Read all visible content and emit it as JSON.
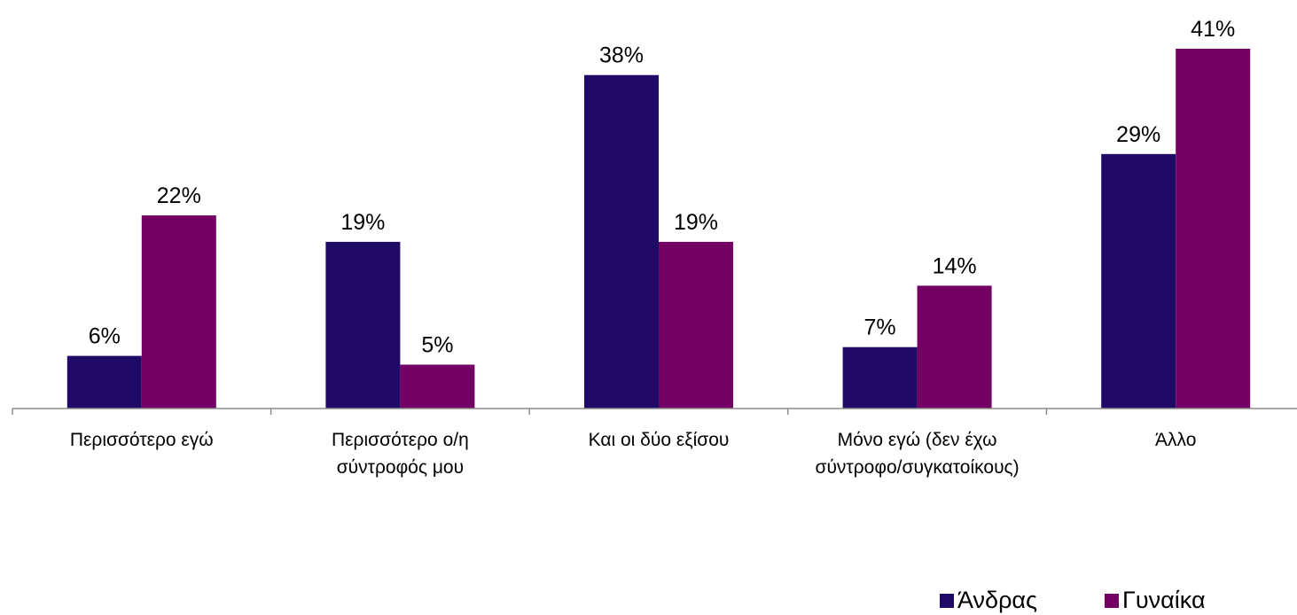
{
  "chart_data": {
    "type": "bar",
    "categories": [
      [
        "Περισσότερο εγώ"
      ],
      [
        "Περισσότερο ο/η",
        "σύντροφός μου"
      ],
      [
        "Και οι δύο εξίσου"
      ],
      [
        "Μόνο εγώ (δεν έχω",
        "σύντροφο/συγκατοίκους)"
      ],
      [
        "Άλλο"
      ]
    ],
    "series": [
      {
        "name": "Άνδρας",
        "color": "#1f0b67",
        "values": [
          6,
          19,
          38,
          7,
          29
        ]
      },
      {
        "name": "Γυναίκα",
        "color": "#720163",
        "values": [
          22,
          5,
          19,
          14,
          41
        ]
      }
    ],
    "value_suffix": "%",
    "ylim": [
      0,
      41
    ],
    "legend_position": "bottom-right",
    "grid": false
  }
}
